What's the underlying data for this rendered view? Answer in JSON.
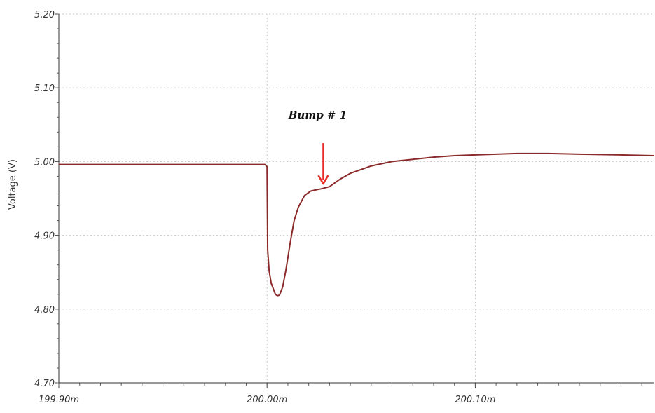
{
  "chart_data": {
    "type": "line",
    "title": "",
    "xlabel": "",
    "ylabel": "Voltage (V)",
    "xlim": [
      199.9,
      200.186
    ],
    "ylim": [
      4.7,
      5.2
    ],
    "grid": true,
    "x_unit_note": "ms",
    "x_tick_values": [
      199.9,
      200.0,
      200.1
    ],
    "x_tick_labels": [
      "199.90m",
      "200.00m",
      "200.10m"
    ],
    "y_tick_values": [
      4.7,
      4.8,
      4.9,
      5.0,
      5.1,
      5.2
    ],
    "y_tick_labels": [
      "4.70",
      "4.80",
      "4.90",
      "5.00",
      "5.10",
      "5.20"
    ],
    "series": [
      {
        "color": "#8b2a2a",
        "x": [
          199.9,
          199.95,
          199.999,
          200.0,
          200.0003,
          200.001,
          200.002,
          200.004,
          200.005,
          200.006,
          200.0075,
          200.009,
          200.011,
          200.013,
          200.015,
          200.018,
          200.021,
          200.024,
          200.026,
          200.03,
          200.035,
          200.04,
          200.05,
          200.06,
          200.07,
          200.08,
          200.09,
          200.1,
          200.12,
          200.135,
          200.15,
          200.17,
          200.186
        ],
        "y": [
          4.996,
          4.996,
          4.996,
          4.993,
          4.88,
          4.852,
          4.835,
          4.82,
          4.818,
          4.819,
          4.83,
          4.852,
          4.888,
          4.92,
          4.938,
          4.954,
          4.96,
          4.962,
          4.963,
          4.966,
          4.976,
          4.984,
          4.994,
          5.0,
          5.003,
          5.006,
          5.008,
          5.009,
          5.011,
          5.011,
          5.01,
          5.009,
          5.008
        ]
      }
    ],
    "annotations": [
      {
        "text": "Bump # 1",
        "x": 200.027,
        "y": 4.968,
        "color": "#e8302a"
      }
    ]
  }
}
